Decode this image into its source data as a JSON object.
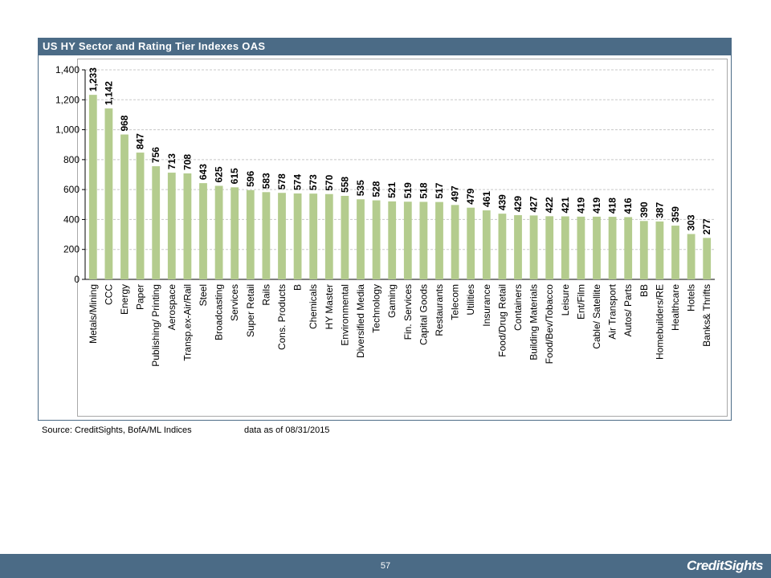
{
  "title": "US HY Sector and Rating Tier Indexes OAS",
  "footer": {
    "source": "Source: CreditSights, BofA/ML Indices",
    "data_as_of": "data as of 08/31/2015",
    "page_number": "57",
    "logo": "CreditSights"
  },
  "colors": {
    "bar": "#b4cc8e",
    "header": "#4b6b86",
    "grid": "#c8c8c8"
  },
  "chart_data": {
    "type": "bar",
    "title": "US HY Sector and Rating Tier Indexes OAS",
    "xlabel": "",
    "ylabel": "",
    "ylim": [
      0,
      1400
    ],
    "yticks": [
      0,
      200,
      400,
      600,
      800,
      1000,
      1200,
      1400
    ],
    "ytick_labels": [
      "0",
      "200",
      "400",
      "600",
      "800",
      "1,000",
      "1,200",
      "1,400"
    ],
    "grid": "horizontal dashed",
    "legend": "none",
    "categories": [
      "Metals/Mining",
      "CCC",
      "Energy",
      "Paper",
      "Publishing/ Printing",
      "Aerospace",
      "Transp.ex-Air/Rail",
      "Steel",
      "Broadcasting",
      "Services",
      "Super Retail",
      "Rails",
      "Cons. Products",
      "B",
      "Chemicals",
      "HY Master",
      "Environmental",
      "Diversified Media",
      "Technology",
      "Gaming",
      "Fin. Services",
      "Capital Goods",
      "Restaurants",
      "Telecom",
      "Utilities",
      "Insurance",
      "Food/Drug Retail",
      "Containers",
      "Building Materials",
      "Food/Bev/Tobacco",
      "Leisure",
      "Ent/Film",
      "Cable/ Satellite",
      "Air Transport",
      "Autos/ Parts",
      "BB",
      "Homebuilders/RE",
      "Healthcare",
      "Hotels",
      "Banks& Thrifts"
    ],
    "values": [
      1233,
      1142,
      968,
      847,
      756,
      713,
      708,
      643,
      625,
      615,
      596,
      583,
      578,
      574,
      573,
      570,
      558,
      535,
      528,
      521,
      519,
      518,
      517,
      497,
      479,
      461,
      439,
      429,
      427,
      422,
      421,
      419,
      419,
      418,
      416,
      390,
      387,
      359,
      303,
      277
    ],
    "data_labels": [
      "1,233",
      "1,142",
      "968",
      "847",
      "756",
      "713",
      "708",
      "643",
      "625",
      "615",
      "596",
      "583",
      "578",
      "574",
      "573",
      "570",
      "558",
      "535",
      "528",
      "521",
      "519",
      "518",
      "517",
      "497",
      "479",
      "461",
      "439",
      "429",
      "427",
      "422",
      "421",
      "419",
      "419",
      "418",
      "416",
      "390",
      "387",
      "359",
      "303",
      "277"
    ]
  }
}
